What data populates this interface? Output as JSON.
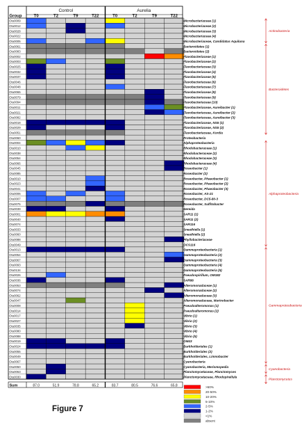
{
  "chart_data": {
    "type": "heatmap",
    "group_header": "Group",
    "treatments": [
      "Control",
      "Aurelia"
    ],
    "timepoints": [
      "T0",
      "T2",
      "T9",
      "T22"
    ],
    "color_scale": [
      {
        "code": 7,
        "label": ">50%",
        "color": "#ff0000"
      },
      {
        "code": 6,
        "label": "20-50%",
        "color": "#ff8c00"
      },
      {
        "code": 5,
        "label": "10-20%",
        "color": "#ffff00"
      },
      {
        "code": 4,
        "label": "5-10%",
        "color": "#6b8e23"
      },
      {
        "code": 3,
        "label": "2-5%",
        "color": "#3366ff"
      },
      {
        "code": 2,
        "label": "1-2%",
        "color": "#00007f"
      },
      {
        "code": 1,
        "label": "<1%",
        "color": "#d3d3d3"
      },
      {
        "code": 0,
        "label": "absent",
        "color": "#7f7f7f"
      }
    ],
    "rows": [
      {
        "otu": "Otu0009",
        "taxon": "Microbacteriaceae (1)",
        "values": [
          3,
          1,
          1,
          1,
          5,
          1,
          1,
          1
        ]
      },
      {
        "otu": "Otu0012",
        "taxon": "Microbacteriaceae (2)",
        "values": [
          3,
          1,
          2,
          1,
          3,
          1,
          1,
          1
        ]
      },
      {
        "otu": "Otu0028",
        "taxon": "Microbacteriaceae (3)",
        "values": [
          1,
          1,
          2,
          1,
          1,
          1,
          1,
          1
        ]
      },
      {
        "otu": "Otu0022",
        "taxon": "Microbacteriaceae (4)",
        "values": [
          1,
          1,
          1,
          1,
          1,
          1,
          1,
          1
        ]
      },
      {
        "otu": "Otu0005",
        "taxon": "Microbacteriaceae, Candidatus Aquiluna",
        "values": [
          3,
          1,
          1,
          3,
          5,
          1,
          1,
          1
        ]
      },
      {
        "otu": "Otu0061",
        "taxon": "Bacteroidetes (1)",
        "values": [
          0,
          0,
          0,
          0,
          0,
          1,
          1,
          1
        ]
      },
      {
        "otu": "Otu0083",
        "taxon": "Bacteroidetes (2)",
        "values": [
          0,
          0,
          0,
          0,
          0,
          0,
          1,
          0
        ]
      },
      {
        "otu": "Otu0002",
        "taxon": "Flavobacteriaceae (1)",
        "values": [
          1,
          1,
          1,
          1,
          1,
          1,
          7,
          6
        ]
      },
      {
        "otu": "Otu0003",
        "taxon": "Flavobacteriaceae (2)",
        "values": [
          4,
          3,
          1,
          1,
          4,
          1,
          1,
          1
        ]
      },
      {
        "otu": "Otu0025",
        "taxon": "Flavobacteriaceae (3)",
        "values": [
          2,
          1,
          1,
          1,
          2,
          1,
          1,
          1
        ]
      },
      {
        "otu": "Otu0032",
        "taxon": "Flavobacteriaceae (4)",
        "values": [
          2,
          1,
          1,
          1,
          2,
          1,
          1,
          1
        ]
      },
      {
        "otu": "Otu0037",
        "taxon": "Flavobacteriaceae (5)",
        "values": [
          2,
          1,
          1,
          1,
          2,
          1,
          1,
          1
        ]
      },
      {
        "otu": "Otu0046",
        "taxon": "Flavobacteriaceae (6)",
        "values": [
          1,
          1,
          1,
          1,
          1,
          1,
          1,
          1
        ]
      },
      {
        "otu": "Otu0048",
        "taxon": "Flavobacteriaceae (7)",
        "values": [
          1,
          1,
          1,
          1,
          3,
          1,
          1,
          1
        ]
      },
      {
        "otu": "Otu0065",
        "taxon": "Flavobacteriaceae (8)",
        "values": [
          1,
          1,
          1,
          1,
          1,
          1,
          2,
          1
        ]
      },
      {
        "otu": "Otu0079",
        "taxon": "Flavobacteriaceae (9)",
        "values": [
          0,
          0,
          0,
          0,
          0,
          0,
          2,
          1
        ]
      },
      {
        "otu": "Otu0094",
        "taxon": "Flavobacteriaceae (10)",
        "values": [
          0,
          0,
          0,
          0,
          0,
          0,
          2,
          0
        ]
      },
      {
        "otu": "Otu0011",
        "taxon": "Flavobacteriaceae, Aureibacter (1)",
        "values": [
          1,
          1,
          1,
          1,
          1,
          1,
          3,
          4
        ]
      },
      {
        "otu": "Otu0021",
        "taxon": "Flavobacteriaceae, Aureibacter (2)",
        "values": [
          1,
          1,
          1,
          1,
          1,
          1,
          2,
          3
        ]
      },
      {
        "otu": "Otu0082",
        "taxon": "Flavobacteriaceae, Aureibacter (3)",
        "values": [
          1,
          1,
          1,
          1,
          1,
          1,
          1,
          1
        ]
      },
      {
        "otu": "Otu0018",
        "taxon": "Flavobacteriaceae, NS5 (1)",
        "values": [
          2,
          2,
          2,
          2,
          2,
          1,
          1,
          1
        ]
      },
      {
        "otu": "Otu0029",
        "taxon": "Flavobacteriaceae, NS5 (2)",
        "values": [
          2,
          1,
          1,
          1,
          2,
          1,
          1,
          1
        ]
      },
      {
        "otu": "Otu0051",
        "taxon": "Flavobacteriaceae, Kordia",
        "values": [
          0,
          0,
          0,
          0,
          0,
          1,
          1,
          1
        ]
      },
      {
        "otu": "Otu0060",
        "taxon": "Proteobacteria",
        "values": [
          1,
          1,
          1,
          1,
          1,
          1,
          1,
          1
        ]
      },
      {
        "otu": "Otu0004",
        "taxon": "Alphaproteobacteria",
        "values": [
          4,
          3,
          5,
          3,
          2,
          1,
          1,
          1
        ]
      },
      {
        "otu": "Otu0010",
        "taxon": "Rhodobacteraceae (1)",
        "values": [
          1,
          1,
          3,
          5,
          1,
          1,
          1,
          1
        ]
      },
      {
        "otu": "Otu0038",
        "taxon": "Rhodobacteraceae (2)",
        "values": [
          1,
          1,
          1,
          1,
          1,
          1,
          1,
          1
        ]
      },
      {
        "otu": "Otu0054",
        "taxon": "Rhodobacteraceae (3)",
        "values": [
          1,
          1,
          1,
          1,
          1,
          1,
          1,
          1
        ]
      },
      {
        "otu": "Otu0066",
        "taxon": "Rhodobacteraceae (4)",
        "values": [
          1,
          1,
          1,
          1,
          1,
          1,
          1,
          2
        ]
      },
      {
        "otu": "Otu0045",
        "taxon": "Roseobacter (1)",
        "values": [
          1,
          1,
          1,
          1,
          1,
          1,
          1,
          2
        ]
      },
      {
        "otu": "Otu0085",
        "taxon": "Roseobacter (2)",
        "values": [
          1,
          1,
          1,
          1,
          1,
          1,
          1,
          1
        ]
      },
      {
        "otu": "Otu0010",
        "taxon": "Roseobacter, Phaeobacter (1)",
        "values": [
          1,
          1,
          1,
          3,
          1,
          1,
          1,
          1
        ]
      },
      {
        "otu": "Otu0023",
        "taxon": "Roseobacter, Phaeobacter (2)",
        "values": [
          1,
          1,
          1,
          3,
          1,
          1,
          1,
          1
        ]
      },
      {
        "otu": "Otu0041",
        "taxon": "Roseobacter, Phaeobacter (3)",
        "values": [
          1,
          1,
          1,
          2,
          1,
          1,
          1,
          1
        ]
      },
      {
        "otu": "Otu0006",
        "taxon": "Roseobacter, AS-21",
        "values": [
          3,
          1,
          3,
          1,
          3,
          1,
          1,
          1
        ]
      },
      {
        "otu": "Otu0007",
        "taxon": "Roseobacter, DC5-80-3",
        "values": [
          3,
          3,
          1,
          1,
          3,
          1,
          1,
          1
        ]
      },
      {
        "otu": "Otu0075",
        "taxon": "Roseobacter, Sulfitobacter",
        "values": [
          0,
          0,
          0,
          2,
          0,
          0,
          0,
          0
        ]
      },
      {
        "otu": "Otu0039",
        "taxon": "Nereida",
        "values": [
          2,
          2,
          1,
          1,
          2,
          1,
          1,
          1
        ]
      },
      {
        "otu": "Otu0001",
        "taxon": "SAR11 (1)",
        "values": [
          6,
          5,
          5,
          6,
          6,
          1,
          1,
          1
        ]
      },
      {
        "otu": "Otu0040",
        "taxon": "SAR11 (2)",
        "values": [
          1,
          1,
          1,
          1,
          2,
          1,
          1,
          1
        ]
      },
      {
        "otu": "Otu0074",
        "taxon": "SAR116",
        "values": [
          1,
          1,
          1,
          1,
          1,
          1,
          1,
          1
        ]
      },
      {
        "otu": "Otu0033",
        "taxon": "Sneathiella (1)",
        "values": [
          1,
          1,
          1,
          1,
          1,
          1,
          1,
          1
        ]
      },
      {
        "otu": "Otu0060",
        "taxon": "Sneathiella (2)",
        "values": [
          1,
          1,
          1,
          1,
          1,
          1,
          1,
          1
        ]
      },
      {
        "otu": "Otu0088",
        "taxon": "Phyllobacteriaceae",
        "values": [
          1,
          1,
          1,
          1,
          1,
          1,
          1,
          2
        ]
      },
      {
        "otu": "Otu0049",
        "taxon": "OCS116",
        "values": [
          1,
          1,
          1,
          1,
          1,
          1,
          1,
          1
        ]
      },
      {
        "otu": "Otu0013",
        "taxon": "Gammaproteobacteria (1)",
        "values": [
          2,
          2,
          2,
          2,
          2,
          1,
          1,
          1
        ]
      },
      {
        "otu": "Otu0054",
        "taxon": "Gammaproteobacteria (2)",
        "values": [
          1,
          1,
          1,
          1,
          1,
          1,
          1,
          3
        ]
      },
      {
        "otu": "Otu0067",
        "taxon": "Gammaproteobacteria (3)",
        "values": [
          1,
          1,
          1,
          1,
          1,
          1,
          1,
          2
        ]
      },
      {
        "otu": "Otu0093",
        "taxon": "Gammaproteobacteria (4)",
        "values": [
          1,
          1,
          1,
          1,
          1,
          1,
          1,
          1
        ]
      },
      {
        "otu": "Otu0134",
        "taxon": "Gammaproteobacteria (5)",
        "values": [
          1,
          1,
          1,
          1,
          1,
          1,
          1,
          1
        ]
      },
      {
        "otu": "Otu0026",
        "taxon": "Pseudospirillum, OM182",
        "values": [
          1,
          3,
          1,
          1,
          1,
          1,
          1,
          1
        ]
      },
      {
        "otu": "Otu0036",
        "taxon": "SAR86",
        "values": [
          2,
          1,
          1,
          1,
          2,
          1,
          1,
          1
        ]
      },
      {
        "otu": "Otu0053",
        "taxon": "Alteromonadaceae (1)",
        "values": [
          0,
          0,
          0,
          0,
          0,
          1,
          1,
          2
        ]
      },
      {
        "otu": "Otu0074",
        "taxon": "Alteromonadaceae (2)",
        "values": [
          1,
          1,
          1,
          1,
          1,
          1,
          2,
          1
        ]
      },
      {
        "otu": "Otu0062",
        "taxon": "Alteromonadaceae (3)",
        "values": [
          1,
          1,
          1,
          1,
          1,
          1,
          1,
          2
        ]
      },
      {
        "otu": "Otu0047",
        "taxon": "Alteromonadaceae, Marinobacter",
        "values": [
          1,
          1,
          4,
          1,
          1,
          1,
          1,
          1
        ]
      },
      {
        "otu": "Otu0008",
        "taxon": "Pseudoalteromonas (1)",
        "values": [
          1,
          1,
          1,
          1,
          1,
          5,
          1,
          1
        ]
      },
      {
        "otu": "Otu0014",
        "taxon": "Pseudoalteromonas (2)",
        "values": [
          1,
          1,
          1,
          1,
          1,
          5,
          1,
          1
        ]
      },
      {
        "otu": "Otu0017",
        "taxon": "Vibrio (1)",
        "values": [
          1,
          1,
          1,
          1,
          1,
          5,
          1,
          1
        ]
      },
      {
        "otu": "Otu0027",
        "taxon": "Vibrio (2)",
        "values": [
          1,
          1,
          1,
          1,
          1,
          5,
          1,
          1
        ]
      },
      {
        "otu": "Otu0035",
        "taxon": "Vibrio (3)",
        "values": [
          1,
          1,
          1,
          1,
          1,
          2,
          1,
          1
        ]
      },
      {
        "otu": "Otu0080",
        "taxon": "Vibrio (4)",
        "values": [
          1,
          1,
          1,
          1,
          1,
          1,
          1,
          1
        ]
      },
      {
        "otu": "Otu0088",
        "taxon": "Vibrio (5)",
        "values": [
          1,
          1,
          1,
          1,
          1,
          1,
          1,
          1
        ]
      },
      {
        "otu": "Otu0019",
        "taxon": "OM43",
        "values": [
          2,
          2,
          1,
          1,
          2,
          1,
          1,
          1
        ]
      },
      {
        "otu": "Otu0024",
        "taxon": "Burkholderiales (1)",
        "values": [
          2,
          2,
          2,
          2,
          2,
          1,
          1,
          1
        ]
      },
      {
        "otu": "Otu0055",
        "taxon": "Burkholderiales (2)",
        "values": [
          1,
          1,
          1,
          1,
          1,
          1,
          1,
          1
        ]
      },
      {
        "otu": "Otu0049",
        "taxon": "Burkholderiales, Limnobacter",
        "values": [
          1,
          1,
          1,
          1,
          1,
          1,
          1,
          1
        ]
      },
      {
        "otu": "Otu0067",
        "taxon": "Cyanobacteria",
        "values": [
          1,
          1,
          1,
          1,
          1,
          1,
          1,
          1
        ]
      },
      {
        "otu": "Otu0050",
        "taxon": "Cyanobacteria, Merismopedia",
        "values": [
          1,
          2,
          1,
          1,
          1,
          1,
          1,
          1
        ]
      },
      {
        "otu": "Otu0063",
        "taxon": "Planctomycetaceae, Planctomyces",
        "values": [
          1,
          2,
          1,
          1,
          1,
          1,
          1,
          1
        ]
      },
      {
        "otu": "Otu0030",
        "taxon": "Planctomycetaceae, Rhodopirellula",
        "values": [
          2,
          1,
          1,
          1,
          1,
          1,
          1,
          1
        ]
      }
    ],
    "sum_label": "Sum",
    "sums": [
      "87.0",
      "51.9",
      "78.8",
      "65.2",
      "83.7",
      "80.5",
      "76.6",
      "65.8"
    ],
    "phyla": [
      {
        "label": "Actinobacteria",
        "first_row": 0,
        "last_row": 4
      },
      {
        "label": "Bacteroidetes",
        "first_row": 5,
        "last_row": 22
      },
      {
        "label": "Alphaproteobacteria",
        "first_row": 24,
        "last_row": 44
      },
      {
        "label": "Gammaproteobacteria",
        "first_row": 45,
        "last_row": 67
      },
      {
        "label": "Cyanobacteria",
        "first_row": 68,
        "last_row": 69
      },
      {
        "label": "Planctomycetes",
        "first_row": 70,
        "last_row": 71
      }
    ],
    "figure_label": "Figure 7"
  }
}
